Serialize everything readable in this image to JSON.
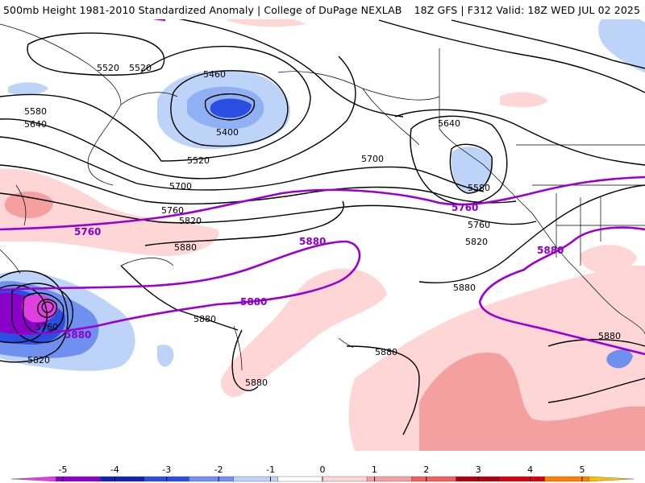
{
  "header": {
    "left_title": "500mb Height 1981-2010 Standardized Anomaly | College of DuPage NEXLAB",
    "right_title": "18Z GFS | F312 Valid: 18Z WED JUL 02 2025"
  },
  "colors": {
    "contour": "#000000",
    "highlight_contour": "#9b00d0",
    "coastline": "#000000"
  },
  "contour_labels": [
    "5520",
    "5520",
    "5460",
    "5400",
    "5520",
    "5580",
    "5640",
    "5700",
    "5760",
    "5820",
    "5880",
    "5640",
    "5700",
    "5580",
    "5760",
    "5820",
    "5880",
    "5880",
    "5880",
    "5880",
    "5880",
    "5760",
    "5820"
  ],
  "highlight_labels": [
    "5760",
    "5880",
    "5880",
    "5880",
    "5760",
    "5880",
    "5880"
  ],
  "colorbar": {
    "ticks": [
      "-5",
      "-4",
      "-3",
      "-2",
      "-1",
      "0",
      "1",
      "2",
      "3",
      "4",
      "5"
    ],
    "colors": [
      "#e040e0",
      "#8a00c8",
      "#1020b0",
      "#2a4ee0",
      "#6f90ee",
      "#bdd3f7",
      "#ffffff",
      "#ffd6d6",
      "#f4a0a0",
      "#ef5f5f",
      "#b00010",
      "#d80010",
      "#ff8000",
      "#ffc000"
    ]
  }
}
